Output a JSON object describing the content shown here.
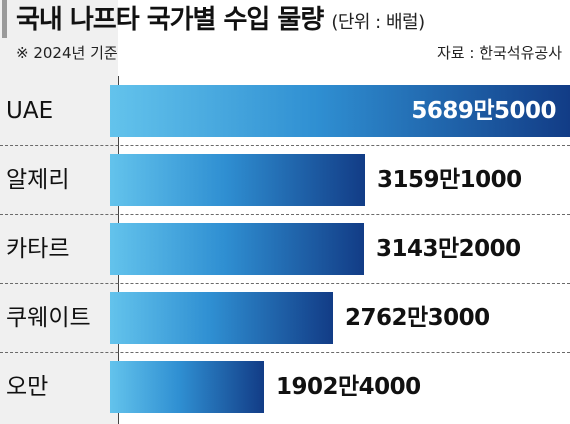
{
  "header": {
    "title": "국내 나프타 국가별 수입 물량",
    "unit": "(단위 : 배럴)",
    "note": "※ 2024년 기준",
    "source": "자료 : 한국석유공사"
  },
  "chart_data": {
    "type": "bar",
    "orientation": "horizontal",
    "title": "국내 나프타 국가별 수입 물량",
    "unit": "배럴",
    "categories": [
      "UAE",
      "알제리",
      "카타르",
      "쿠웨이트",
      "오만"
    ],
    "values": [
      56895000,
      31591000,
      31432000,
      27623000,
      19024000
    ],
    "value_labels": [
      "5689만5000",
      "3159만1000",
      "3143만2000",
      "2762만3000",
      "1902만4000"
    ],
    "xlim": [
      0,
      56895000
    ],
    "grid": false,
    "legend": "none"
  },
  "colors": {
    "bar_start": "#63c3ec",
    "bar_mid": "#2f8fd2",
    "bar_end": "#123c86",
    "side_panel": "#f0f0f0"
  }
}
